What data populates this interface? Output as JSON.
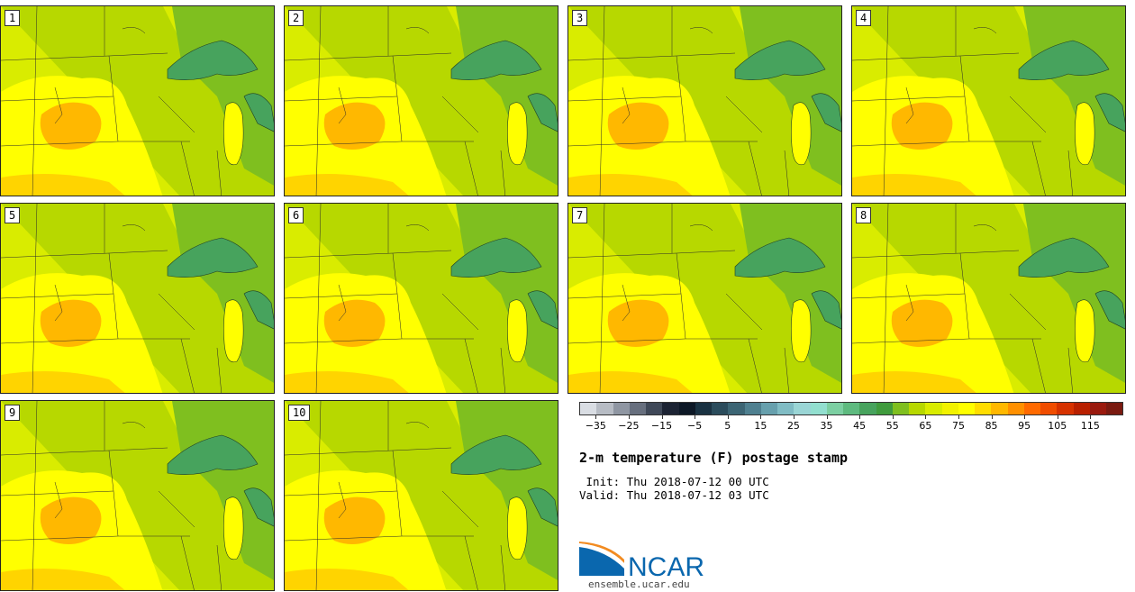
{
  "panels": [
    {
      "label": "1"
    },
    {
      "label": "2"
    },
    {
      "label": "3"
    },
    {
      "label": "4"
    },
    {
      "label": "5"
    },
    {
      "label": "6"
    },
    {
      "label": "7"
    },
    {
      "label": "8"
    },
    {
      "label": "9"
    },
    {
      "label": "10"
    }
  ],
  "colorbar": {
    "colors": [
      "#d9dde3",
      "#b7bcc4",
      "#8f96a2",
      "#676f7e",
      "#3f4858",
      "#1c2333",
      "#0d1826",
      "#1a3242",
      "#2b4c5c",
      "#3c6574",
      "#4f8090",
      "#67a0ad",
      "#80bcc4",
      "#9ad5d5",
      "#92dfcf",
      "#7ccfa2",
      "#5eba7f",
      "#47a35d",
      "#3f9b3d",
      "#7fbf1f",
      "#b7d800",
      "#d9ec00",
      "#f2f200",
      "#ffff00",
      "#ffdd00",
      "#ffb800",
      "#ff9000",
      "#ff6a00",
      "#f04d00",
      "#d63200",
      "#b82000",
      "#9a1a0e",
      "#7a1a10"
    ],
    "tick_labels": [
      "−35",
      "−25",
      "−15",
      "−5",
      "5",
      "15",
      "25",
      "35",
      "45",
      "55",
      "65",
      "75",
      "85",
      "95",
      "105",
      "115"
    ],
    "tick_values": [
      -35,
      -25,
      -15,
      -5,
      5,
      15,
      25,
      35,
      45,
      55,
      65,
      75,
      85,
      95,
      105,
      115
    ],
    "range": [
      -40,
      125
    ]
  },
  "title": "2-m temperature (F) postage stamp",
  "init_line": " Init: Thu 2018-07-12 00 UTC",
  "valid_line": "Valid: Thu 2018-07-12 03 UTC",
  "logo": {
    "text": "NCAR",
    "color": "#0a67ae",
    "accent": "#f28b20"
  },
  "url": "ensemble.ucar.edu",
  "colors": {
    "warm": "#ffff00",
    "hot": "#ffb800",
    "mild": "#d9ec00",
    "cool": "#b7d800",
    "green": "#7fbf1f",
    "lake": "#47a35d"
  }
}
